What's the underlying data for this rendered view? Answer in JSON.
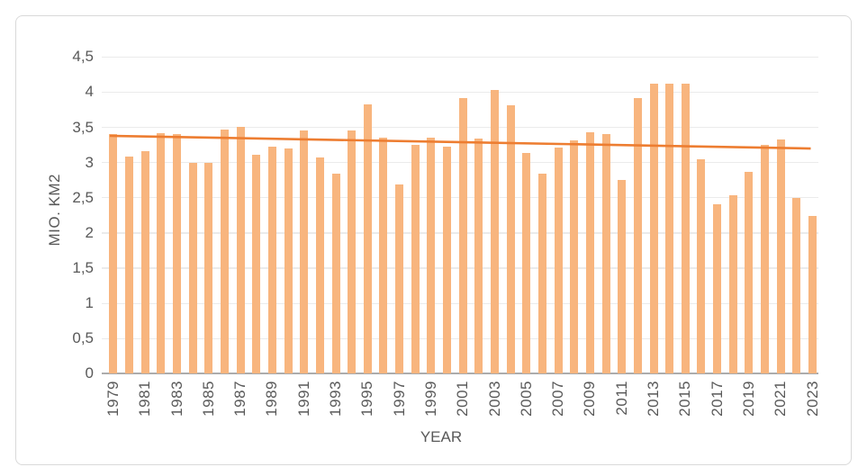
{
  "chart_data": {
    "type": "bar",
    "title": "",
    "xlabel": "YEAR",
    "ylabel": "MIO. KM2",
    "categories": [
      "1979",
      "1980",
      "1981",
      "1982",
      "1983",
      "1984",
      "1985",
      "1986",
      "1987",
      "1988",
      "1989",
      "1990",
      "1991",
      "1992",
      "1993",
      "1994",
      "1995",
      "1996",
      "1997",
      "1998",
      "1999",
      "2000",
      "2001",
      "2002",
      "2003",
      "2004",
      "2005",
      "2006",
      "2007",
      "2008",
      "2009",
      "2010",
      "2011",
      "2012",
      "2013",
      "2014",
      "2015",
      "2016",
      "2017",
      "2018",
      "2019",
      "2020",
      "2021",
      "2022",
      "2023"
    ],
    "values": [
      3.41,
      3.08,
      3.16,
      3.42,
      3.4,
      2.99,
      2.99,
      3.47,
      3.51,
      3.11,
      3.23,
      3.2,
      3.46,
      3.07,
      2.84,
      3.46,
      3.83,
      3.35,
      2.69,
      3.25,
      3.35,
      3.22,
      3.92,
      3.34,
      4.03,
      3.81,
      3.14,
      2.84,
      3.21,
      3.32,
      3.43,
      3.41,
      2.75,
      3.92,
      4.12,
      4.12,
      4.12,
      3.05,
      2.41,
      2.53,
      2.87,
      3.25,
      3.33,
      2.5,
      2.24
    ],
    "x_tick_labels": [
      "1979",
      "1981",
      "1983",
      "1985",
      "1987",
      "1989",
      "1991",
      "1993",
      "1995",
      "1997",
      "1999",
      "2001",
      "2003",
      "2005",
      "2007",
      "2009",
      "2011",
      "2013",
      "2015",
      "2017",
      "2019",
      "2021",
      "2023"
    ],
    "y_ticks": [
      {
        "label": "4,5",
        "value": 4.5
      },
      {
        "label": "4",
        "value": 4.0
      },
      {
        "label": "3,5",
        "value": 3.5
      },
      {
        "label": "3",
        "value": 3.0
      },
      {
        "label": "2,5",
        "value": 2.5
      },
      {
        "label": "2",
        "value": 2.0
      },
      {
        "label": "1,5",
        "value": 1.5
      },
      {
        "label": "1",
        "value": 1.0
      },
      {
        "label": "0,5",
        "value": 0.5
      },
      {
        "label": "0",
        "value": 0
      }
    ],
    "ylim": [
      0,
      4.5
    ],
    "grid": true,
    "legend": false,
    "bar_color": "#F8B57E",
    "trendline": {
      "start_value": 3.38,
      "end_value": 3.2,
      "color": "#ED7D31"
    },
    "axis_text_color": "#595959"
  }
}
